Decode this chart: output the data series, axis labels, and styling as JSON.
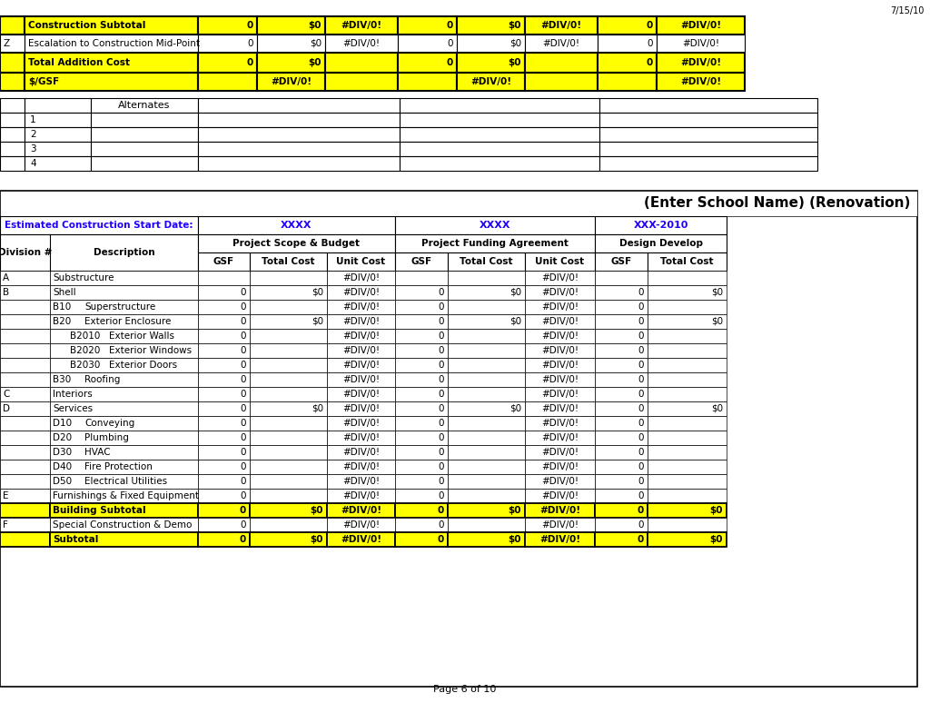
{
  "page_date": "7/15/10",
  "page_footer": "Page 6 of 10",
  "yellow": "#FFFF00",
  "top_rows": [
    {
      "bg": "yellow",
      "bold": true,
      "c0": "",
      "c1": "Construction Subtotal",
      "vals": [
        "0",
        "$0",
        "#DIV/0!",
        "0",
        "$0",
        "#DIV/0!",
        "0",
        "#DIV/0!"
      ]
    },
    {
      "bg": "white",
      "bold": false,
      "c0": "Z",
      "c1": "Escalation to Construction Mid-Point",
      "vals": [
        "0",
        "$0",
        "#DIV/0!",
        "0",
        "$0",
        "#DIV/0!",
        "0",
        "#DIV/0!"
      ]
    },
    {
      "bg": "yellow",
      "bold": true,
      "c0": "",
      "c1": "Total Addition Cost",
      "vals": [
        "0",
        "$0",
        "",
        "0",
        "$0",
        "",
        "0",
        "#DIV/0!"
      ]
    },
    {
      "bg": "yellow",
      "bold": true,
      "c0": "",
      "c1": "$/GSF",
      "vals": [
        "",
        "#DIV/0!",
        "",
        "",
        "#DIV/0!",
        "",
        "",
        "#DIV/0!"
      ]
    }
  ],
  "alt_rows": [
    "1",
    "2",
    "3",
    "4"
  ],
  "main_title": "(Enter School Name) (Renovation)",
  "est_label": "Estimated Construction Start Date:",
  "xxxx1": "XXXX",
  "xxxx2": "XXXX",
  "xxx2010": "XXX-2010",
  "main_rows": [
    {
      "div": "A",
      "sub": "",
      "desc": "Substructure",
      "yellow": false,
      "gsf1": "",
      "tc1": "",
      "uc1": "#DIV/0!",
      "gsf2": "",
      "tc2": "",
      "uc2": "#DIV/0!",
      "gsf3": "",
      "tc3": ""
    },
    {
      "div": "B",
      "sub": "",
      "desc": "Shell",
      "yellow": false,
      "gsf1": "0",
      "tc1": "$0",
      "uc1": "#DIV/0!",
      "gsf2": "0",
      "tc2": "$0",
      "uc2": "#DIV/0!",
      "gsf3": "0",
      "tc3": "$0"
    },
    {
      "div": "",
      "sub": "B10",
      "desc": "Superstructure",
      "yellow": false,
      "gsf1": "0",
      "tc1": "",
      "uc1": "#DIV/0!",
      "gsf2": "0",
      "tc2": "",
      "uc2": "#DIV/0!",
      "gsf3": "0",
      "tc3": ""
    },
    {
      "div": "",
      "sub": "B20",
      "desc": "Exterior Enclosure",
      "yellow": false,
      "gsf1": "0",
      "tc1": "$0",
      "uc1": "#DIV/0!",
      "gsf2": "0",
      "tc2": "$0",
      "uc2": "#DIV/0!",
      "gsf3": "0",
      "tc3": "$0"
    },
    {
      "div": "",
      "sub": "B2010",
      "desc": "Exterior Walls",
      "yellow": false,
      "gsf1": "0",
      "tc1": "",
      "uc1": "#DIV/0!",
      "gsf2": "0",
      "tc2": "",
      "uc2": "#DIV/0!",
      "gsf3": "0",
      "tc3": ""
    },
    {
      "div": "",
      "sub": "B2020",
      "desc": "Exterior Windows",
      "yellow": false,
      "gsf1": "0",
      "tc1": "",
      "uc1": "#DIV/0!",
      "gsf2": "0",
      "tc2": "",
      "uc2": "#DIV/0!",
      "gsf3": "0",
      "tc3": ""
    },
    {
      "div": "",
      "sub": "B2030",
      "desc": "Exterior Doors",
      "yellow": false,
      "gsf1": "0",
      "tc1": "",
      "uc1": "#DIV/0!",
      "gsf2": "0",
      "tc2": "",
      "uc2": "#DIV/0!",
      "gsf3": "0",
      "tc3": ""
    },
    {
      "div": "",
      "sub": "B30",
      "desc": "Roofing",
      "yellow": false,
      "gsf1": "0",
      "tc1": "",
      "uc1": "#DIV/0!",
      "gsf2": "0",
      "tc2": "",
      "uc2": "#DIV/0!",
      "gsf3": "0",
      "tc3": ""
    },
    {
      "div": "C",
      "sub": "",
      "desc": "Interiors",
      "yellow": false,
      "gsf1": "0",
      "tc1": "",
      "uc1": "#DIV/0!",
      "gsf2": "0",
      "tc2": "",
      "uc2": "#DIV/0!",
      "gsf3": "0",
      "tc3": ""
    },
    {
      "div": "D",
      "sub": "",
      "desc": "Services",
      "yellow": false,
      "gsf1": "0",
      "tc1": "$0",
      "uc1": "#DIV/0!",
      "gsf2": "0",
      "tc2": "$0",
      "uc2": "#DIV/0!",
      "gsf3": "0",
      "tc3": "$0"
    },
    {
      "div": "",
      "sub": "D10",
      "desc": "Conveying",
      "yellow": false,
      "gsf1": "0",
      "tc1": "",
      "uc1": "#DIV/0!",
      "gsf2": "0",
      "tc2": "",
      "uc2": "#DIV/0!",
      "gsf3": "0",
      "tc3": ""
    },
    {
      "div": "",
      "sub": "D20",
      "desc": "Plumbing",
      "yellow": false,
      "gsf1": "0",
      "tc1": "",
      "uc1": "#DIV/0!",
      "gsf2": "0",
      "tc2": "",
      "uc2": "#DIV/0!",
      "gsf3": "0",
      "tc3": ""
    },
    {
      "div": "",
      "sub": "D30",
      "desc": "HVAC",
      "yellow": false,
      "gsf1": "0",
      "tc1": "",
      "uc1": "#DIV/0!",
      "gsf2": "0",
      "tc2": "",
      "uc2": "#DIV/0!",
      "gsf3": "0",
      "tc3": ""
    },
    {
      "div": "",
      "sub": "D40",
      "desc": "Fire Protection",
      "yellow": false,
      "gsf1": "0",
      "tc1": "",
      "uc1": "#DIV/0!",
      "gsf2": "0",
      "tc2": "",
      "uc2": "#DIV/0!",
      "gsf3": "0",
      "tc3": ""
    },
    {
      "div": "",
      "sub": "D50",
      "desc": "Electrical Utilities",
      "yellow": false,
      "gsf1": "0",
      "tc1": "",
      "uc1": "#DIV/0!",
      "gsf2": "0",
      "tc2": "",
      "uc2": "#DIV/0!",
      "gsf3": "0",
      "tc3": ""
    },
    {
      "div": "E",
      "sub": "",
      "desc": "Furnishings & Fixed Equipment",
      "yellow": false,
      "gsf1": "0",
      "tc1": "",
      "uc1": "#DIV/0!",
      "gsf2": "0",
      "tc2": "",
      "uc2": "#DIV/0!",
      "gsf3": "0",
      "tc3": ""
    },
    {
      "div": "",
      "sub": "",
      "desc": "Building Subtotal",
      "yellow": true,
      "gsf1": "0",
      "tc1": "$0",
      "uc1": "#DIV/0!",
      "gsf2": "0",
      "tc2": "$0",
      "uc2": "#DIV/0!",
      "gsf3": "0",
      "tc3": "$0"
    },
    {
      "div": "F",
      "sub": "",
      "desc": "Special Construction & Demo",
      "yellow": false,
      "gsf1": "0",
      "tc1": "",
      "uc1": "#DIV/0!",
      "gsf2": "0",
      "tc2": "",
      "uc2": "#DIV/0!",
      "gsf3": "0",
      "tc3": ""
    },
    {
      "div": "",
      "sub": "",
      "desc": "Subtotal",
      "yellow": true,
      "gsf1": "0",
      "tc1": "$0",
      "uc1": "#DIV/0!",
      "gsf2": "0",
      "tc2": "$0",
      "uc2": "#DIV/0!",
      "gsf3": "0",
      "tc3": "$0"
    }
  ]
}
